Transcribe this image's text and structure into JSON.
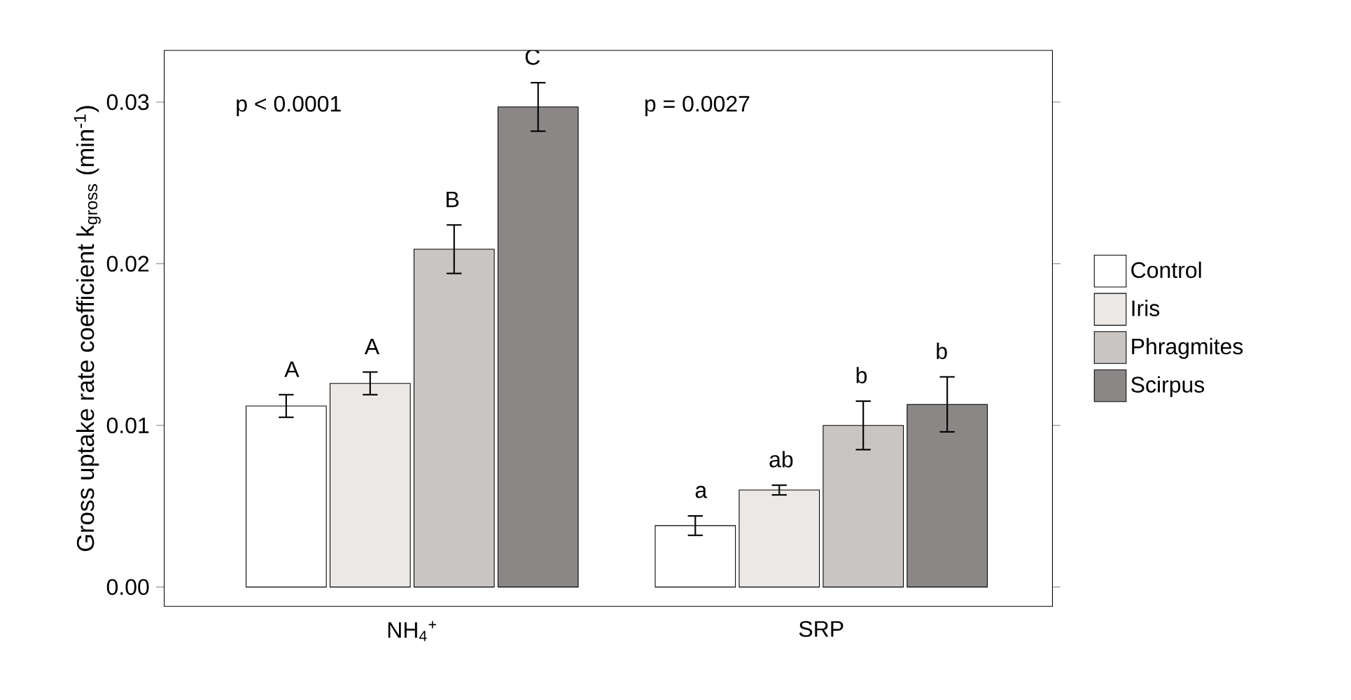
{
  "chart_data": {
    "type": "bar",
    "ylabel": "Gross uptake rate coefficient k$_{gross}$ (min$^{-1}$)",
    "categories": [
      "NH$_{4}$$^{+}$",
      "SRP"
    ],
    "series": [
      {
        "name": "Control",
        "color": "#ffffff",
        "values": [
          0.0112,
          0.0038
        ],
        "errors": [
          0.0007,
          0.0006
        ],
        "value_labels": [
          "A",
          "a"
        ]
      },
      {
        "name": "Iris",
        "color": "#ebe8e6",
        "values": [
          0.0126,
          0.006
        ],
        "errors": [
          0.0007,
          0.0003
        ],
        "value_labels": [
          "A",
          "ab"
        ]
      },
      {
        "name": "Phragmites",
        "color": "#c9c5c3",
        "values": [
          0.0209,
          0.01
        ],
        "errors": [
          0.0015,
          0.0015
        ],
        "value_labels": [
          "B",
          "b"
        ]
      },
      {
        "name": "Scirpus",
        "color": "#8a8786",
        "values": [
          0.0297,
          0.0113
        ],
        "errors": [
          0.0015,
          0.0017
        ],
        "value_labels": [
          "C",
          "b"
        ]
      }
    ],
    "ylim": [
      -0.0012,
      0.0332
    ],
    "yticks": [
      {
        "value": 0,
        "label": "0.00"
      },
      {
        "value": 0.01,
        "label": "0.01"
      },
      {
        "value": 0.02,
        "label": "0.02"
      },
      {
        "value": 0.03,
        "label": "0.03"
      }
    ],
    "annotations": [
      "p < 0.0001",
      "p = 0.0027"
    ],
    "grid": false,
    "legend": "right"
  }
}
